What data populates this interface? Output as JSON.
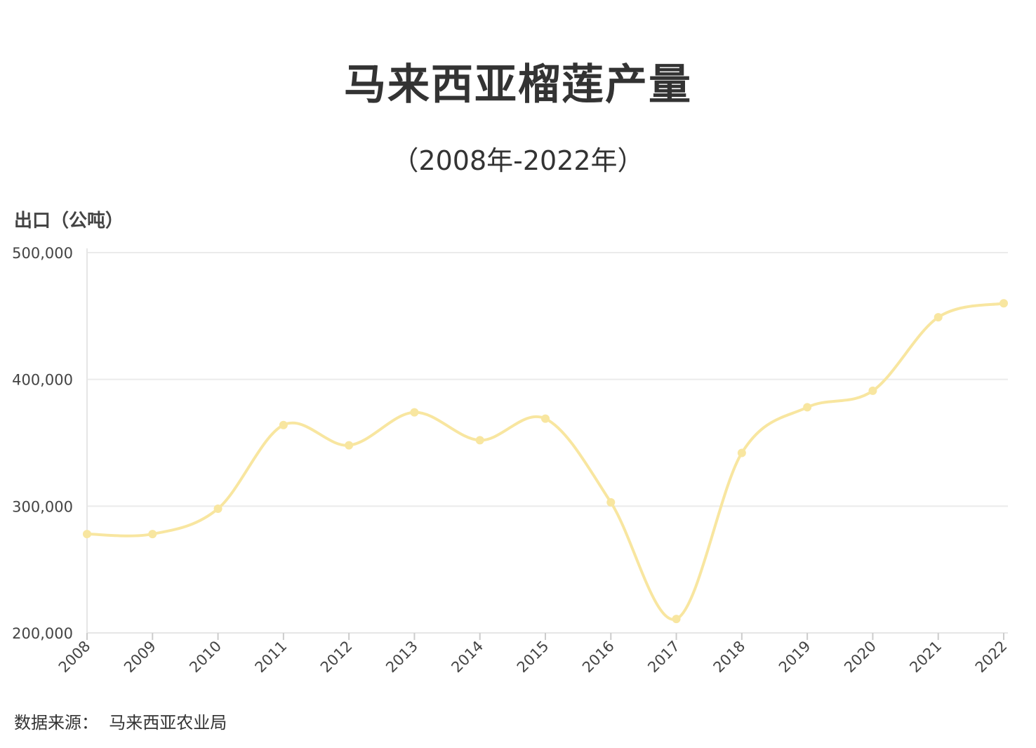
{
  "chart_data": {
    "type": "line",
    "title": "马来西亚榴莲产量",
    "subtitle": "（2008年-2022年）",
    "ylabel": "出口（公吨）",
    "xlabel": "",
    "source_label": "数据来源：",
    "source_value": "马来西亚农业局",
    "categories": [
      "2008",
      "2009",
      "2010",
      "2011",
      "2012",
      "2013",
      "2014",
      "2015",
      "2016",
      "2017",
      "2018",
      "2019",
      "2020",
      "2021",
      "2022"
    ],
    "series": [
      {
        "values": [
          278000,
          278000,
          298000,
          364000,
          348000,
          374000,
          352000,
          369000,
          303000,
          211000,
          342000,
          378000,
          391000,
          449000,
          460000
        ],
        "color": "#f8e6a0"
      }
    ],
    "ylim": [
      200000,
      500000
    ],
    "yticks": [
      200000,
      300000,
      400000,
      500000
    ],
    "ytick_labels": [
      "200,000",
      "300,000",
      "400,000",
      "500,000"
    ],
    "grid": true,
    "smooth": true
  }
}
